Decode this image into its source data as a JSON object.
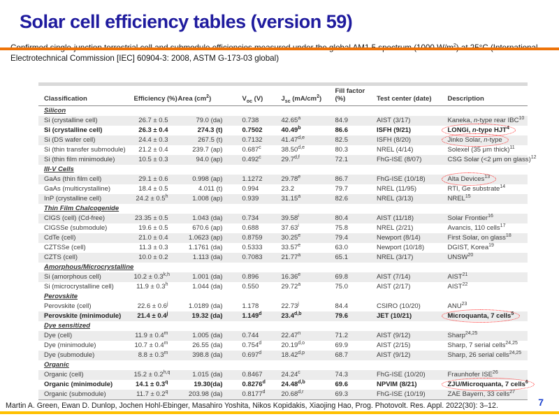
{
  "slide": {
    "title": "Solar cell efficiency tables (version 59)",
    "intro": "Confirmed single-junction terrestrial cell and submodule efficiencies measured under the global AM1.5 spectrum (1000 W/m^{2}) at 25°C (International Electrotechnical Commission [IEC] 60904-3: 2008, ASTM G-173-03 global)",
    "citation": "Martin A. Green, Ewan D. Dunlop, Jochen Hohl-Ebinger, Masahiro Yoshita, Nikos Kopidakis, Xiaojing Hao, Prog. Photovolt. Res. Appl. 2022(30): 3–12.",
    "page_number": "7"
  },
  "colors": {
    "title": "#1f1b9e",
    "orange_rule": "#ee7309",
    "yellow_rule": "#ffc000",
    "page_number": "#1d43cf",
    "row_shade": "#ececec",
    "annotation_red": "#ff1212"
  },
  "table": {
    "headers": [
      "Classification",
      "Efficiency (%)",
      "Area (cm^{2})",
      "V_{oc} (V)",
      "J_{sc} (mA/cm^{2})",
      "Fill factor (%)",
      "Test center (date)",
      "Description"
    ],
    "sections": [
      {
        "name": "Silicon",
        "rows": [
          {
            "classification": "Si (crystalline cell)",
            "efficiency": "26.7 ± 0.5",
            "area": "79.0 (da)",
            "voc": "0.738",
            "jsc": "42.65^{a}",
            "ff": "84.9",
            "center": "AIST (3/17)",
            "description": "Kaneka, *n*-type rear IBC^{10}",
            "bold": false,
            "shaded": true,
            "circled": false
          },
          {
            "classification": "Si (crystalline cell)",
            "efficiency": "26.3 ± 0.4",
            "area": "274.3 (t)",
            "voc": "0.7502",
            "jsc": "40.49^{b}",
            "ff": "86.6",
            "center": "ISFH (9/21)",
            "description": "LONGi, *n*-type HJT^{4}",
            "bold": true,
            "shaded": false,
            "circled": true
          },
          {
            "classification": "Si (DS wafer cell)",
            "efficiency": "24.4 ± 0.3",
            "area": "267.5 (t)",
            "voc": "0.7132",
            "jsc": "41.47^{d,e}",
            "ff": "82.5",
            "center": "ISFH (8/20)",
            "description": "Jinko Solar, *n*-type",
            "bold": false,
            "shaded": true,
            "circled": true
          },
          {
            "classification": "Si (thin transfer submodule)",
            "efficiency": "21.2 ± 0.4",
            "area": "239.7 (ap)",
            "voc": "0.687^{c}",
            "jsc": "38.50^{d,e}",
            "ff": "80.3",
            "center": "NREL (4/14)",
            "description": "Solexel (35 μm thick)^{11}",
            "bold": false,
            "shaded": false,
            "circled": false
          },
          {
            "classification": "Si (thin film minimodule)",
            "efficiency": "10.5 ± 0.3",
            "area": "94.0 (ap)",
            "voc": "0.492^{c}",
            "jsc": "29.7^{d,f}",
            "ff": "72.1",
            "center": "FhG-ISE (8/07)",
            "description": "CSG Solar (<2 μm on glass)^{12}",
            "bold": false,
            "shaded": true,
            "circled": false
          }
        ]
      },
      {
        "name": "III-V Cells",
        "rows": [
          {
            "classification": "GaAs (thin film cell)",
            "efficiency": "29.1 ± 0.6",
            "area": "0.998 (ap)",
            "voc": "1.1272",
            "jsc": "29.78^{e}",
            "ff": "86.7",
            "center": "FhG-ISE (10/18)",
            "description": "Alta Devices^{13}",
            "bold": false,
            "shaded": true,
            "circled": true
          },
          {
            "classification": "GaAs (multicrystalline)",
            "efficiency": "18.4 ± 0.5",
            "area": "4.011 (t)",
            "voc": "0.994",
            "jsc": "23.2",
            "ff": "79.7",
            "center": "NREL (11/95)",
            "description": "RTI, Ge substrate^{14}",
            "bold": false,
            "shaded": false,
            "circled": false
          },
          {
            "classification": "InP (crystalline cell)",
            "efficiency": "24.2 ± 0.5^{h}",
            "area": "1.008 (ap)",
            "voc": "0.939",
            "jsc": "31.15^{a}",
            "ff": "82.6",
            "center": "NREL (3/13)",
            "description": "NREL^{15}",
            "bold": false,
            "shaded": true,
            "circled": false
          }
        ]
      },
      {
        "name": "Thin Film Chalcogenide",
        "rows": [
          {
            "classification": "CIGS (cell) (Cd-free)",
            "efficiency": "23.35 ± 0.5",
            "area": "1.043 (da)",
            "voc": "0.734",
            "jsc": "39.58^{i}",
            "ff": "80.4",
            "center": "AIST (11/18)",
            "description": "Solar Frontier^{16}",
            "bold": false,
            "shaded": true,
            "circled": false
          },
          {
            "classification": "CIGSSe (submodule)",
            "efficiency": "19.6 ± 0.5",
            "area": "670.6 (ap)",
            "voc": "0.688",
            "jsc": "37.63^{i}",
            "ff": "75.8",
            "center": "NREL (2/21)",
            "description": "Avancis, 110 cells^{17}",
            "bold": false,
            "shaded": false,
            "circled": false
          },
          {
            "classification": "CdTe (cell)",
            "efficiency": "21.0 ± 0.4",
            "area": "1.0623 (ap)",
            "voc": "0.8759",
            "jsc": "30.25^{e}",
            "ff": "79.4",
            "center": "Newport (8/14)",
            "description": "First Solar, on glass^{18}",
            "bold": false,
            "shaded": true,
            "circled": false
          },
          {
            "classification": "CZTSSe (cell)",
            "efficiency": "11.3 ± 0.3",
            "area": "1.1761 (da)",
            "voc": "0.5333",
            "jsc": "33.57^{e}",
            "ff": "63.0",
            "center": "Newport (10/18)",
            "description": "DGIST, Korea^{19}",
            "bold": false,
            "shaded": false,
            "circled": false
          },
          {
            "classification": "CZTS (cell)",
            "efficiency": "10.0 ± 0.2",
            "area": "1.113 (da)",
            "voc": "0.7083",
            "jsc": "21.77^{a}",
            "ff": "65.1",
            "center": "NREL (3/17)",
            "description": "UNSW^{20}",
            "bold": false,
            "shaded": true,
            "circled": false
          }
        ]
      },
      {
        "name": "Amorphous/Microcrystalline",
        "rows": [
          {
            "classification": "Si (amorphous cell)",
            "efficiency": "10.2 ± 0.3^{k,h}",
            "area": "1.001 (da)",
            "voc": "0.896",
            "jsc": "16.36^{e}",
            "ff": "69.8",
            "center": "AIST (7/14)",
            "description": "AIST^{21}",
            "bold": false,
            "shaded": true,
            "circled": false
          },
          {
            "classification": "Si (microcrystalline cell)",
            "efficiency": "11.9 ± 0.3^{h}",
            "area": "1.044 (da)",
            "voc": "0.550",
            "jsc": "29.72^{a}",
            "ff": "75.0",
            "center": "AIST (2/17)",
            "description": "AIST^{22}",
            "bold": false,
            "shaded": false,
            "circled": false
          }
        ]
      },
      {
        "name": "Perovskite",
        "rows": [
          {
            "classification": "Perovskite (cell)",
            "efficiency": "22.6 ± 0.6^{j}",
            "area": "1.0189 (da)",
            "voc": "1.178",
            "jsc": "22.73^{j}",
            "ff": "84.4",
            "center": "CSIRO (10/20)",
            "description": "ANU^{23}",
            "bold": false,
            "shaded": false,
            "circled": false
          },
          {
            "classification": "Perovskite (minimodule)",
            "efficiency": "21.4 ± 0.4^{j}",
            "area": "19.32 (da)",
            "voc": "1.149^{d}",
            "jsc": "23.4^{d,b}",
            "ff": "79.6",
            "center": "JET (10/21)",
            "description": "Microquanta, 7 cells^{5}",
            "bold": true,
            "shaded": true,
            "circled": true
          }
        ]
      },
      {
        "name": "Dye sensitized",
        "rows": [
          {
            "classification": "Dye (cell)",
            "efficiency": "11.9 ± 0.4^{m}",
            "area": "1.005 (da)",
            "voc": "0.744",
            "jsc": "22.47^{n}",
            "ff": "71.2",
            "center": "AIST (9/12)",
            "description": "Sharp^{24,25}",
            "bold": false,
            "shaded": true,
            "circled": false
          },
          {
            "classification": "Dye (minimodule)",
            "efficiency": "10.7 ± 0.4^{m}",
            "area": "26.55 (da)",
            "voc": "0.754^{d}",
            "jsc": "20.19^{d,o}",
            "ff": "69.9",
            "center": "AIST (2/15)",
            "description": "Sharp, 7 serial cells^{24,25}",
            "bold": false,
            "shaded": false,
            "circled": false
          },
          {
            "classification": "Dye (submodule)",
            "efficiency": "8.8 ± 0.3^{m}",
            "area": "398.8 (da)",
            "voc": "0.697^{d}",
            "jsc": "18.42^{d,p}",
            "ff": "68.7",
            "center": "AIST (9/12)",
            "description": "Sharp, 26 serial cells^{24,25}",
            "bold": false,
            "shaded": true,
            "circled": false
          }
        ]
      },
      {
        "name": "Organic",
        "rows": [
          {
            "classification": "Organic (cell)",
            "efficiency": "15.2 ± 0.2^{h,q}",
            "area": "1.015 (da)",
            "voc": "0.8467",
            "jsc": "24.24^{c}",
            "ff": "74.3",
            "center": "FhG-ISE (10/20)",
            "description": "Fraunhofer ISE^{26}",
            "bold": false,
            "shaded": true,
            "circled": false
          },
          {
            "classification": "Organic (minimodule)",
            "efficiency": "14.1 ± 0.3^{q}",
            "area": "19.30(da)",
            "voc": "0.8276^{d}",
            "jsc": "24.48^{d,b}",
            "ff": "69.6",
            "center": "NPVIM (8/21)",
            "description": "ZJU/Microquanta, 7 cells^{6}",
            "bold": true,
            "shaded": false,
            "circled": true
          },
          {
            "classification": "Organic (submodule)",
            "efficiency": "11.7 ± 0.2^{q}",
            "area": "203.98 (da)",
            "voc": "0.8177^{d}",
            "jsc": "20.68^{d,r}",
            "ff": "69.3",
            "center": "FhG-ISE (10/19)",
            "description": "ZAE Bayern, 33 cells^{27}",
            "bold": false,
            "shaded": true,
            "circled": false
          }
        ]
      }
    ]
  }
}
